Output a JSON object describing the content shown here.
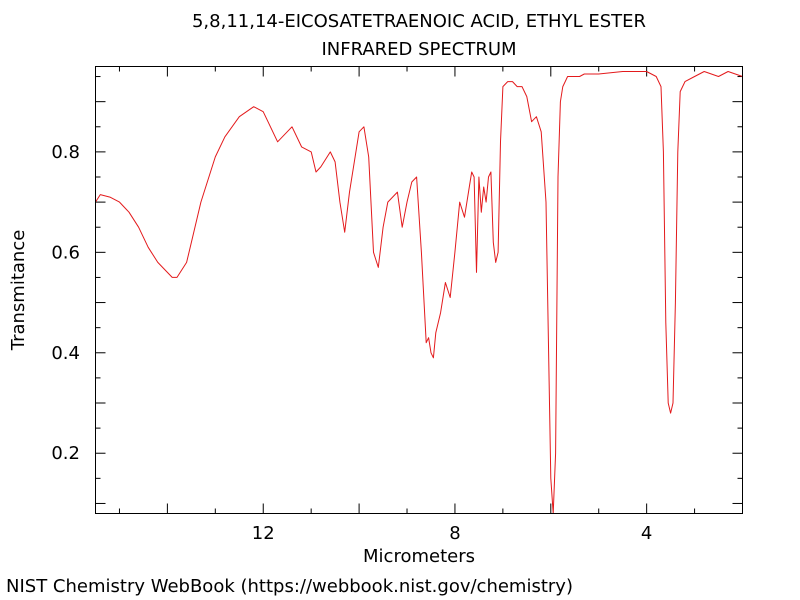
{
  "chart_data": {
    "type": "line",
    "title": "5,8,11,14-EICOSATETRAENOIC ACID, ETHYL ESTER",
    "subtitle": "INFRARED SPECTRUM",
    "xlabel": "Micrometers",
    "ylabel": "Transmitance",
    "xlim": [
      15.5,
      2.0
    ],
    "ylim": [
      0.08,
      0.97
    ],
    "xticks": [
      12,
      8,
      4
    ],
    "xtick_labels": [
      "12",
      "8",
      "4"
    ],
    "yticks": [
      0.2,
      0.4,
      0.6,
      0.8
    ],
    "ytick_labels": [
      "0.2",
      "0.4",
      "0.6",
      "0.8"
    ],
    "line_color": "#e31a1c",
    "series": [
      {
        "name": "IR spectrum",
        "x": [
          15.5,
          15.4,
          15.2,
          15.0,
          14.8,
          14.6,
          14.4,
          14.2,
          14.0,
          13.9,
          13.8,
          13.6,
          13.5,
          13.3,
          13.0,
          12.8,
          12.5,
          12.2,
          12.0,
          11.9,
          11.7,
          11.5,
          11.4,
          11.2,
          11.0,
          10.9,
          10.8,
          10.6,
          10.5,
          10.4,
          10.3,
          10.2,
          10.0,
          9.9,
          9.8,
          9.7,
          9.6,
          9.5,
          9.4,
          9.2,
          9.1,
          9.0,
          8.9,
          8.8,
          8.7,
          8.6,
          8.55,
          8.5,
          8.45,
          8.4,
          8.3,
          8.2,
          8.1,
          8.0,
          7.9,
          7.8,
          7.7,
          7.65,
          7.6,
          7.55,
          7.5,
          7.45,
          7.4,
          7.35,
          7.3,
          7.25,
          7.2,
          7.15,
          7.1,
          7.05,
          7.0,
          6.9,
          6.8,
          6.7,
          6.6,
          6.5,
          6.4,
          6.3,
          6.2,
          6.1,
          6.0,
          5.95,
          5.9,
          5.85,
          5.8,
          5.75,
          5.7,
          5.65,
          5.6,
          5.5,
          5.4,
          5.3,
          5.0,
          4.5,
          4.0,
          3.8,
          3.7,
          3.65,
          3.6,
          3.55,
          3.5,
          3.45,
          3.4,
          3.35,
          3.3,
          3.2,
          3.0,
          2.8,
          2.5,
          2.3,
          2.0
        ],
        "y": [
          0.7,
          0.715,
          0.71,
          0.7,
          0.68,
          0.65,
          0.61,
          0.58,
          0.56,
          0.55,
          0.55,
          0.58,
          0.62,
          0.7,
          0.79,
          0.83,
          0.87,
          0.89,
          0.88,
          0.86,
          0.82,
          0.84,
          0.85,
          0.81,
          0.8,
          0.76,
          0.77,
          0.8,
          0.78,
          0.7,
          0.64,
          0.72,
          0.84,
          0.85,
          0.79,
          0.6,
          0.57,
          0.65,
          0.7,
          0.72,
          0.65,
          0.7,
          0.74,
          0.75,
          0.6,
          0.42,
          0.43,
          0.4,
          0.39,
          0.44,
          0.48,
          0.54,
          0.51,
          0.6,
          0.7,
          0.67,
          0.73,
          0.76,
          0.75,
          0.56,
          0.75,
          0.68,
          0.73,
          0.7,
          0.75,
          0.76,
          0.62,
          0.58,
          0.6,
          0.82,
          0.93,
          0.94,
          0.94,
          0.93,
          0.93,
          0.91,
          0.86,
          0.87,
          0.84,
          0.7,
          0.15,
          0.08,
          0.2,
          0.75,
          0.9,
          0.93,
          0.94,
          0.95,
          0.95,
          0.95,
          0.95,
          0.955,
          0.955,
          0.96,
          0.96,
          0.95,
          0.93,
          0.8,
          0.46,
          0.3,
          0.28,
          0.3,
          0.5,
          0.8,
          0.92,
          0.94,
          0.95,
          0.96,
          0.95,
          0.96,
          0.95
        ]
      }
    ]
  },
  "footer": {
    "text": "NIST Chemistry WebBook (https://webbook.nist.gov/chemistry)"
  }
}
